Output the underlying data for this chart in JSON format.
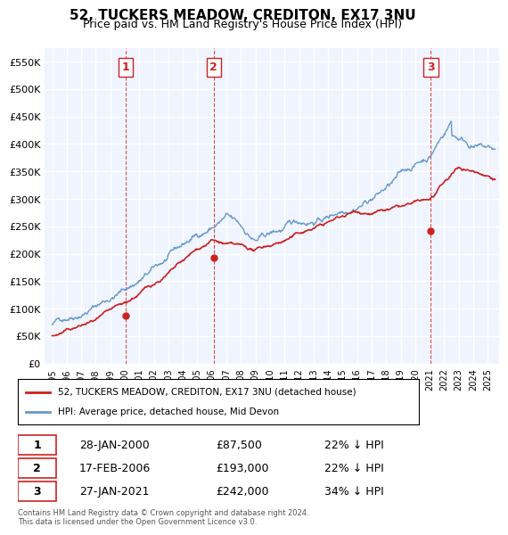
{
  "title": "52, TUCKERS MEADOW, CREDITON, EX17 3NU",
  "subtitle": "Price paid vs. HM Land Registry's House Price Index (HPI)",
  "xlabel": "",
  "ylabel": "",
  "ylim": [
    0,
    570000
  ],
  "yticks": [
    0,
    50000,
    100000,
    150000,
    200000,
    250000,
    300000,
    350000,
    400000,
    450000,
    500000,
    550000
  ],
  "ytick_labels": [
    "£0",
    "£50K",
    "£100K",
    "£150K",
    "£200K",
    "£250K",
    "£300K",
    "£350K",
    "£400K",
    "£450K",
    "£500K",
    "£550K"
  ],
  "background_color": "#ffffff",
  "plot_bg_color": "#f0f4ff",
  "grid_color": "#ffffff",
  "hpi_color": "#6699cc",
  "price_color": "#cc2222",
  "vline_color": "#cc2222",
  "legend_box_color": "#cc2222",
  "sale_points": [
    {
      "date_num": 2000.08,
      "price": 87500,
      "label": "1"
    },
    {
      "date_num": 2006.13,
      "price": 193000,
      "label": "2"
    },
    {
      "date_num": 2021.08,
      "price": 242000,
      "label": "3"
    }
  ],
  "transactions": [
    {
      "number": "1",
      "date": "28-JAN-2000",
      "price": "£87,500",
      "hpi_diff": "22% ↓ HPI"
    },
    {
      "number": "2",
      "date": "17-FEB-2006",
      "price": "£193,000",
      "hpi_diff": "22% ↓ HPI"
    },
    {
      "number": "3",
      "date": "27-JAN-2021",
      "price": "£242,000",
      "hpi_diff": "34% ↓ HPI"
    }
  ],
  "legend_line1": "52, TUCKERS MEADOW, CREDITON, EX17 3NU (detached house)",
  "legend_line2": "HPI: Average price, detached house, Mid Devon",
  "footnote": "Contains HM Land Registry data © Crown copyright and database right 2024.\nThis data is licensed under the Open Government Licence v3.0."
}
